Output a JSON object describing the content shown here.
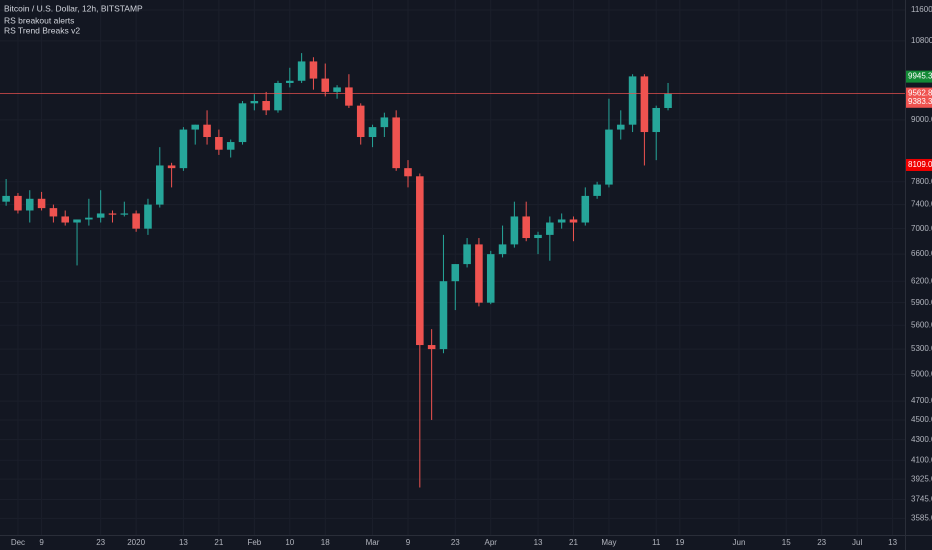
{
  "chart_data": {
    "type": "candlestick",
    "title": "Bitcoin / U.S. Dollar, 12h, BITSTAMP",
    "indicators": [
      "RS breakout alerts",
      "RS Trend Breaks v2"
    ],
    "categories": [
      null,
      "Dec",
      null,
      "9",
      null,
      null,
      null,
      null,
      "23",
      null,
      null,
      "2020",
      null,
      null,
      null,
      "13",
      null,
      null,
      "21",
      null,
      null,
      "Feb",
      null,
      null,
      "10",
      null,
      null,
      "18",
      null,
      null,
      null,
      "Mar",
      null,
      null,
      "9",
      null,
      null,
      null,
      "23",
      null,
      null,
      "Apr",
      null,
      null,
      null,
      "13",
      null,
      null,
      "21",
      null,
      null,
      "May",
      null,
      null,
      null,
      "11",
      null,
      "19",
      null,
      null,
      null,
      null,
      "Jun",
      null,
      null,
      null,
      "15",
      null,
      null,
      "23",
      null,
      null,
      "Jul",
      null,
      null,
      "13"
    ],
    "open": [
      7450,
      7550,
      7300,
      7500,
      7340,
      7200,
      7100,
      7150,
      7180,
      7250,
      7230,
      7250,
      7000,
      7400,
      8100,
      8050,
      8800,
      8900,
      8650,
      8400,
      8550,
      9350,
      9400,
      9200,
      9800,
      9850,
      10300,
      9900,
      9600,
      9700,
      9300,
      8650,
      8850,
      9050,
      8050,
      7900,
      5350,
      5300,
      6200,
      6450,
      6750,
      5900,
      6600,
      6750,
      7200,
      6850,
      6900,
      7100,
      7150,
      7100,
      7550,
      7750,
      8800,
      8900,
      9950,
      8750,
      9250,
      null,
      null,
      null,
      null,
      null,
      null,
      null,
      null,
      null,
      null,
      null,
      null,
      null,
      null,
      null,
      null,
      null,
      null,
      null
    ],
    "high": [
      7850,
      7600,
      7650,
      7620,
      7400,
      7300,
      7150,
      7500,
      7650,
      7300,
      7450,
      7300,
      7500,
      8450,
      8150,
      8850,
      8900,
      9200,
      8800,
      8600,
      9400,
      9550,
      9600,
      9850,
      10150,
      10500,
      10400,
      10250,
      9750,
      10000,
      9350,
      8900,
      9150,
      9200,
      8200,
      7950,
      5550,
      6900,
      6450,
      6850,
      6850,
      6650,
      7050,
      7450,
      7450,
      6950,
      7200,
      7250,
      7200,
      7700,
      7800,
      9450,
      9200,
      10000,
      10000,
      9300,
      9800,
      null,
      null,
      null,
      null,
      null,
      null,
      null,
      null,
      null,
      null,
      null,
      null,
      null,
      null,
      null,
      null,
      null,
      null,
      null
    ],
    "low": [
      7380,
      7250,
      7100,
      7300,
      7100,
      7050,
      6430,
      7050,
      7100,
      7100,
      7200,
      6950,
      6900,
      7350,
      7700,
      8000,
      8500,
      8500,
      8300,
      8250,
      8500,
      9200,
      9100,
      9150,
      9700,
      9800,
      9650,
      9500,
      9450,
      9250,
      8500,
      8450,
      8650,
      8000,
      7700,
      3850,
      4500,
      5250,
      5800,
      6400,
      5850,
      5880,
      6550,
      6700,
      6800,
      6600,
      6500,
      7000,
      6800,
      7050,
      7500,
      7700,
      8600,
      8750,
      8100,
      8200,
      9200,
      null,
      null,
      null,
      null,
      null,
      null,
      null,
      null,
      null,
      null,
      null,
      null,
      null,
      null,
      null,
      null,
      null,
      null,
      null
    ],
    "close": [
      7550,
      7300,
      7500,
      7340,
      7200,
      7100,
      7150,
      7180,
      7250,
      7230,
      7250,
      7000,
      7400,
      8100,
      8050,
      8800,
      8900,
      8650,
      8400,
      8550,
      9350,
      9400,
      9200,
      9800,
      9850,
      10300,
      9900,
      9600,
      9700,
      9300,
      8650,
      8850,
      9050,
      8050,
      7900,
      5350,
      5300,
      6200,
      6450,
      6750,
      5900,
      6600,
      6750,
      7200,
      6850,
      6900,
      7100,
      7150,
      7100,
      7550,
      7750,
      8800,
      8900,
      9950,
      8750,
      9250,
      9560,
      null,
      null,
      null,
      null,
      null,
      null,
      null,
      null,
      null,
      null,
      null,
      null,
      null,
      null,
      null,
      null,
      null,
      null,
      null
    ],
    "up_color": "#26a69a",
    "down_color": "#ef5350",
    "log_scale": true,
    "ylim": [
      3450,
      11870
    ],
    "yticks": [
      {
        "value": 11600,
        "label": "11600.00"
      },
      {
        "value": 10800,
        "label": "10800.00"
      },
      {
        "value": 9000,
        "label": "9000.00"
      },
      {
        "value": 7800,
        "label": "7800.00"
      },
      {
        "value": 7400,
        "label": "7400.00"
      },
      {
        "value": 7000,
        "label": "7000.00"
      },
      {
        "value": 6600,
        "label": "6600.00"
      },
      {
        "value": 6200,
        "label": "6200.00"
      },
      {
        "value": 5900,
        "label": "5900.00"
      },
      {
        "value": 5600,
        "label": "5600.00"
      },
      {
        "value": 5300,
        "label": "5300.00"
      },
      {
        "value": 5000,
        "label": "5000.00"
      },
      {
        "value": 4700,
        "label": "4700.00"
      },
      {
        "value": 4500,
        "label": "4500.00"
      },
      {
        "value": 4300,
        "label": "4300.00"
      },
      {
        "value": 4100,
        "label": "4100.00"
      },
      {
        "value": 3925,
        "label": "3925.00"
      },
      {
        "value": 3745,
        "label": "3745.00"
      },
      {
        "value": 3585,
        "label": "3585.00"
      }
    ],
    "price_line": {
      "value": 9562.8,
      "label": "9562.80",
      "color": "#ef5350"
    },
    "price_labels": [
      {
        "value": 9945.34,
        "label": "9945.34",
        "color": "#138a36"
      },
      {
        "value": 9383.31,
        "label": "9383.31",
        "color": "#ef5350"
      },
      {
        "value": 8109,
        "label": "8109.00",
        "color": "#f00000"
      }
    ]
  }
}
